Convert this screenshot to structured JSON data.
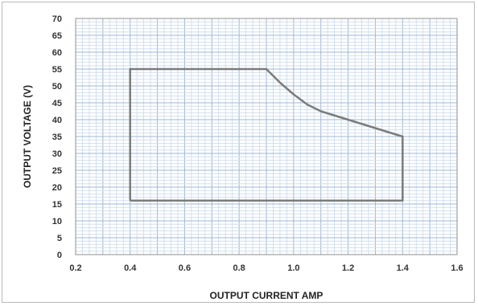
{
  "chart_data": {
    "type": "line",
    "title": "",
    "xlabel": "OUTPUT CURRENT AMP",
    "ylabel": "OUTPUT VOLTAGE (V)",
    "xlim": [
      0.2,
      1.6
    ],
    "ylim": [
      0,
      70
    ],
    "x_ticks": [
      "0.2",
      "0.4",
      "0.6",
      "0.8",
      "1.0",
      "1.2",
      "1.4",
      "1.6"
    ],
    "y_ticks": [
      "0",
      "5",
      "10",
      "15",
      "20",
      "25",
      "30",
      "35",
      "40",
      "45",
      "50",
      "55",
      "60",
      "65",
      "70"
    ],
    "grid": true,
    "legend": "none",
    "series": [
      {
        "points": [
          [
            0.4,
            16
          ],
          [
            0.4,
            55
          ],
          [
            0.9,
            55
          ],
          [
            0.95,
            51
          ],
          [
            1.0,
            47.5
          ],
          [
            1.05,
            44.5
          ],
          [
            1.1,
            42.5
          ],
          [
            1.2,
            40
          ],
          [
            1.3,
            37.5
          ],
          [
            1.4,
            35
          ],
          [
            1.4,
            16
          ],
          [
            0.4,
            16
          ]
        ]
      }
    ],
    "colors": {
      "line": "#7b7b7b",
      "grid_minor": "#c9d9ec",
      "grid_major": "#9fb7d6",
      "plot_border": "#8f8f8f",
      "text": "#333333"
    }
  }
}
